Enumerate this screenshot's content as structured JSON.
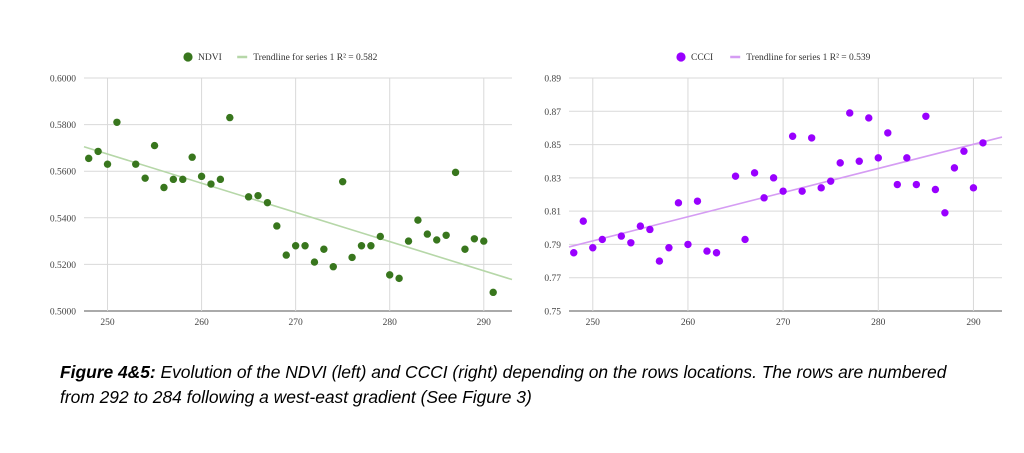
{
  "chart_data": [
    {
      "type": "scatter",
      "title": "",
      "xlabel": "",
      "ylabel": "",
      "legend_position": "top",
      "grid": true,
      "xlim": [
        247.5,
        293
      ],
      "ylim": [
        0.5,
        0.6
      ],
      "x_ticks": [
        "250",
        "260",
        "270",
        "280",
        "290"
      ],
      "y_ticks": [
        "0.5000",
        "0.5200",
        "0.5400",
        "0.5600",
        "0.5800",
        "0.6000"
      ],
      "series": [
        {
          "name": "NDVI",
          "color": "#38761d",
          "points": [
            [
              248,
              0.5655
            ],
            [
              249,
              0.5685
            ],
            [
              250,
              0.563
            ],
            [
              251,
              0.581
            ],
            [
              253,
              0.563
            ],
            [
              254,
              0.557
            ],
            [
              255,
              0.571
            ],
            [
              256,
              0.553
            ],
            [
              257,
              0.5565
            ],
            [
              258,
              0.5565
            ],
            [
              259,
              0.566
            ],
            [
              260,
              0.5578
            ],
            [
              261,
              0.5545
            ],
            [
              262,
              0.5565
            ],
            [
              263,
              0.583
            ],
            [
              265,
              0.549
            ],
            [
              266,
              0.5495
            ],
            [
              267,
              0.5465
            ],
            [
              268,
              0.5365
            ],
            [
              269,
              0.524
            ],
            [
              270,
              0.528
            ],
            [
              271,
              0.528
            ],
            [
              272,
              0.521
            ],
            [
              273,
              0.5265
            ],
            [
              274,
              0.519
            ],
            [
              275,
              0.5555
            ],
            [
              276,
              0.523
            ],
            [
              277,
              0.528
            ],
            [
              278,
              0.528
            ],
            [
              279,
              0.532
            ],
            [
              280,
              0.5155
            ],
            [
              281,
              0.514
            ],
            [
              282,
              0.53
            ],
            [
              283,
              0.539
            ],
            [
              284,
              0.533
            ],
            [
              285,
              0.5305
            ],
            [
              286,
              0.5325
            ],
            [
              287,
              0.5595
            ],
            [
              288,
              0.5265
            ],
            [
              289,
              0.531
            ],
            [
              290,
              0.53
            ],
            [
              291,
              0.508
            ]
          ]
        },
        {
          "name": "Trendline for series 1 R² = 0.582",
          "color": "#b6d7a8",
          "trend": [
            [
              247.5,
              0.5705
            ],
            [
              293,
              0.5135
            ]
          ]
        }
      ]
    },
    {
      "type": "scatter",
      "title": "",
      "xlabel": "",
      "ylabel": "",
      "legend_position": "top",
      "grid": true,
      "xlim": [
        247.5,
        293
      ],
      "ylim": [
        0.75,
        0.89
      ],
      "x_ticks": [
        "250",
        "260",
        "270",
        "280",
        "290"
      ],
      "y_ticks": [
        "0.75",
        "0.77",
        "0.79",
        "0.81",
        "0.83",
        "0.85",
        "0.87",
        "0.89"
      ],
      "series": [
        {
          "name": "CCCI",
          "color": "#9900ff",
          "points": [
            [
              248,
              0.785
            ],
            [
              249,
              0.804
            ],
            [
              250,
              0.788
            ],
            [
              251,
              0.793
            ],
            [
              253,
              0.795
            ],
            [
              254,
              0.791
            ],
            [
              255,
              0.801
            ],
            [
              256,
              0.799
            ],
            [
              257,
              0.78
            ],
            [
              258,
              0.788
            ],
            [
              259,
              0.815
            ],
            [
              260,
              0.79
            ],
            [
              261,
              0.816
            ],
            [
              262,
              0.786
            ],
            [
              263,
              0.785
            ],
            [
              265,
              0.831
            ],
            [
              266,
              0.793
            ],
            [
              267,
              0.833
            ],
            [
              268,
              0.818
            ],
            [
              269,
              0.83
            ],
            [
              270,
              0.822
            ],
            [
              271,
              0.855
            ],
            [
              272,
              0.822
            ],
            [
              273,
              0.854
            ],
            [
              274,
              0.824
            ],
            [
              275,
              0.828
            ],
            [
              276,
              0.839
            ],
            [
              277,
              0.869
            ],
            [
              278,
              0.84
            ],
            [
              279,
              0.866
            ],
            [
              280,
              0.842
            ],
            [
              281,
              0.857
            ],
            [
              282,
              0.826
            ],
            [
              283,
              0.842
            ],
            [
              284,
              0.826
            ],
            [
              285,
              0.867
            ],
            [
              286,
              0.823
            ],
            [
              287,
              0.809
            ],
            [
              288,
              0.836
            ],
            [
              289,
              0.846
            ],
            [
              290,
              0.824
            ],
            [
              291,
              0.851
            ]
          ]
        },
        {
          "name": "Trendline for series 1 R² = 0.539",
          "color": "#d59cf3",
          "trend": [
            [
              247.5,
              0.7885
            ],
            [
              293,
              0.8545
            ]
          ]
        }
      ]
    }
  ],
  "caption": {
    "label": "Figure 4&5:",
    "text": " Evolution of the NDVI (left) and CCCI (right) depending on the rows locations. The rows are numbered from 292 to 284 following a west-east gradient (See Figure 3)"
  }
}
